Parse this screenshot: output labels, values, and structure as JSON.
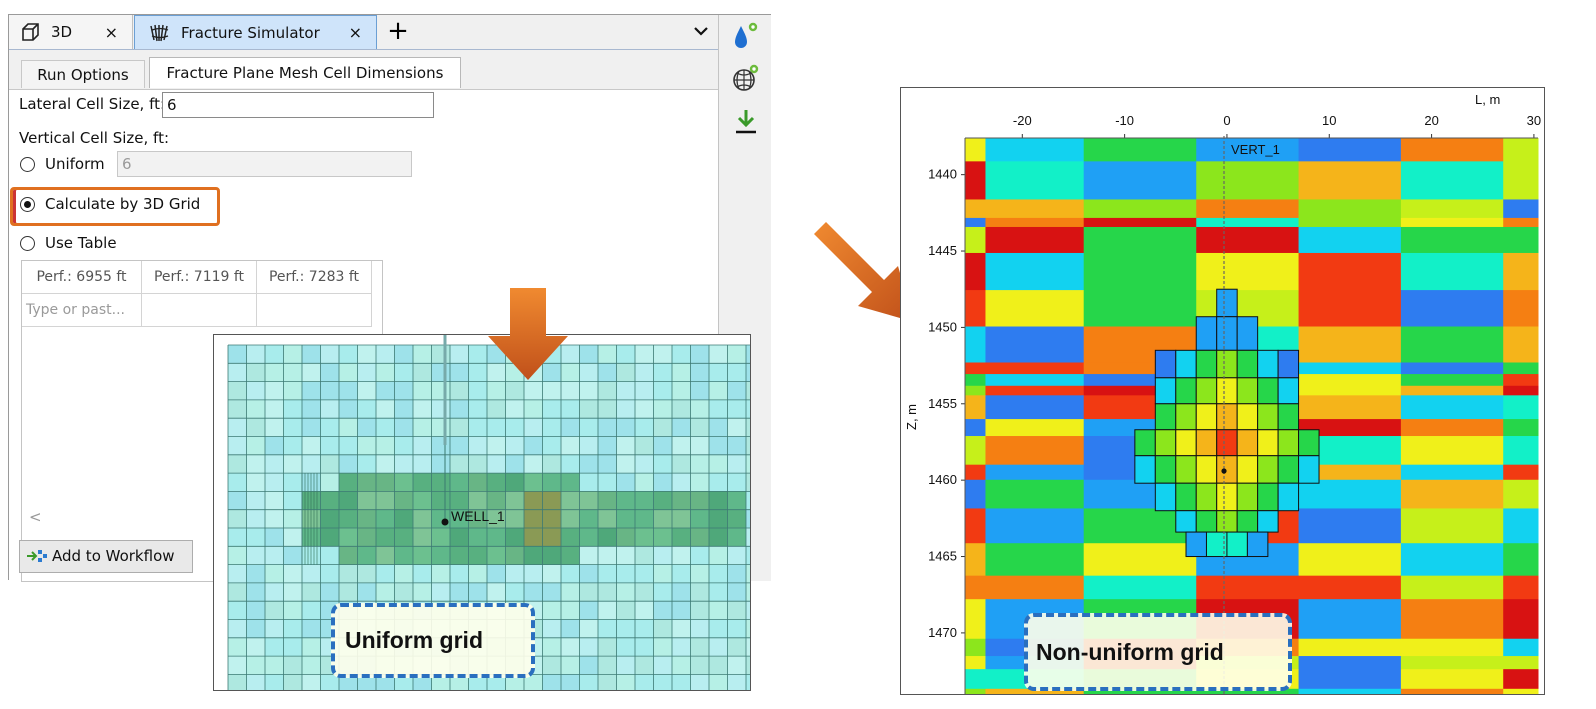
{
  "tabs": [
    {
      "label": "3D",
      "close": "×"
    },
    {
      "label": "Fracture Simulator",
      "close": "×"
    }
  ],
  "tab_add": "+",
  "subtabs": [
    "Run Options",
    "Fracture Plane Mesh Cell Dimensions"
  ],
  "form": {
    "lateral_label": "Lateral Cell Size, ft:",
    "lateral_value": "6",
    "vertical_label": "Vertical Cell Size, ft:",
    "uniform_label": "Uniform",
    "uniform_value": "6",
    "calc_label": "Calculate by 3D Grid",
    "table_label": "Use Table",
    "selected": "Calculate by 3D Grid"
  },
  "table": {
    "headers": [
      "Perf.: 6955 ft",
      "Perf.: 7119 ft",
      "Perf.: 7283 ft"
    ],
    "placeholder": "Type or past..."
  },
  "scroll_arrow": "<",
  "workflow_button": "Add to Workflow",
  "icons": [
    "cube-icon",
    "fracture-icon",
    "dropdown-chevron-icon",
    "water-drop-gear-icon",
    "mesh-sphere-gear-icon",
    "download-arrow-icon"
  ],
  "uniform_plot": {
    "well_label": "WELL_1",
    "caption": "Uniform grid"
  },
  "nonuniform_plot": {
    "x_axis_label": "L, m",
    "y_axis_label": "Z, m",
    "x_ticks": [
      "-20",
      "-10",
      "0",
      "10",
      "20",
      "30"
    ],
    "y_ticks": [
      "1440",
      "1445",
      "1450",
      "1455",
      "1460",
      "1465",
      "1470"
    ],
    "well_label": "VERT_1",
    "caption": "Non-uniform grid"
  },
  "colors": {
    "highlight": "#e07020",
    "arrow": "#d2691e",
    "caption_border": "#2a6fbf",
    "active_tab": "#cfe4fa"
  }
}
